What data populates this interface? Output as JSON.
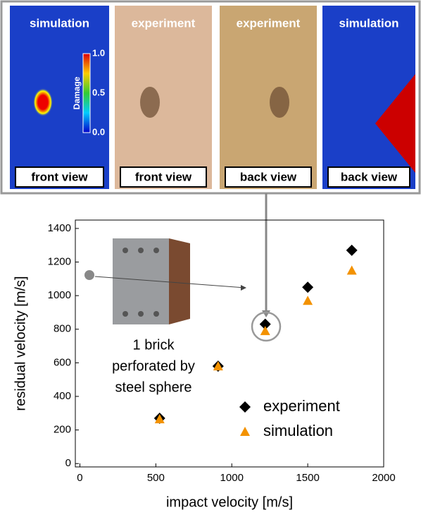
{
  "panels": [
    {
      "title": "simulation",
      "view": "front view"
    },
    {
      "title": "experiment",
      "view": "front view"
    },
    {
      "title": "experiment",
      "view": "back view"
    },
    {
      "title": "simulation",
      "view": "back view"
    }
  ],
  "colorbar": {
    "label": "Damage",
    "ticks": [
      "1.0",
      "0.5",
      "0.0"
    ]
  },
  "chart_data": {
    "type": "scatter",
    "xlabel": "impact velocity [m/s]",
    "ylabel": "residual velocity [m/s]",
    "annotation": [
      "1 brick",
      "perforated by",
      "steel sphere"
    ],
    "x": [
      525,
      910,
      1220,
      1500,
      1790
    ],
    "series": [
      {
        "name": "experiment",
        "color": "#000000",
        "marker": "diamond",
        "values": [
          270,
          580,
          830,
          1050,
          1270
        ]
      },
      {
        "name": "simulation",
        "color": "#f39200",
        "marker": "triangle",
        "values": [
          265,
          580,
          790,
          970,
          1150
        ]
      }
    ],
    "xlim": [
      -30,
      2000
    ],
    "xticks": [
      0,
      500,
      1000,
      1500,
      2000
    ],
    "ylim": [
      -20,
      1450
    ],
    "yticks": [
      0,
      200,
      400,
      600,
      800,
      1000,
      1200,
      1400
    ],
    "legend": "lower right",
    "grid": false
  }
}
